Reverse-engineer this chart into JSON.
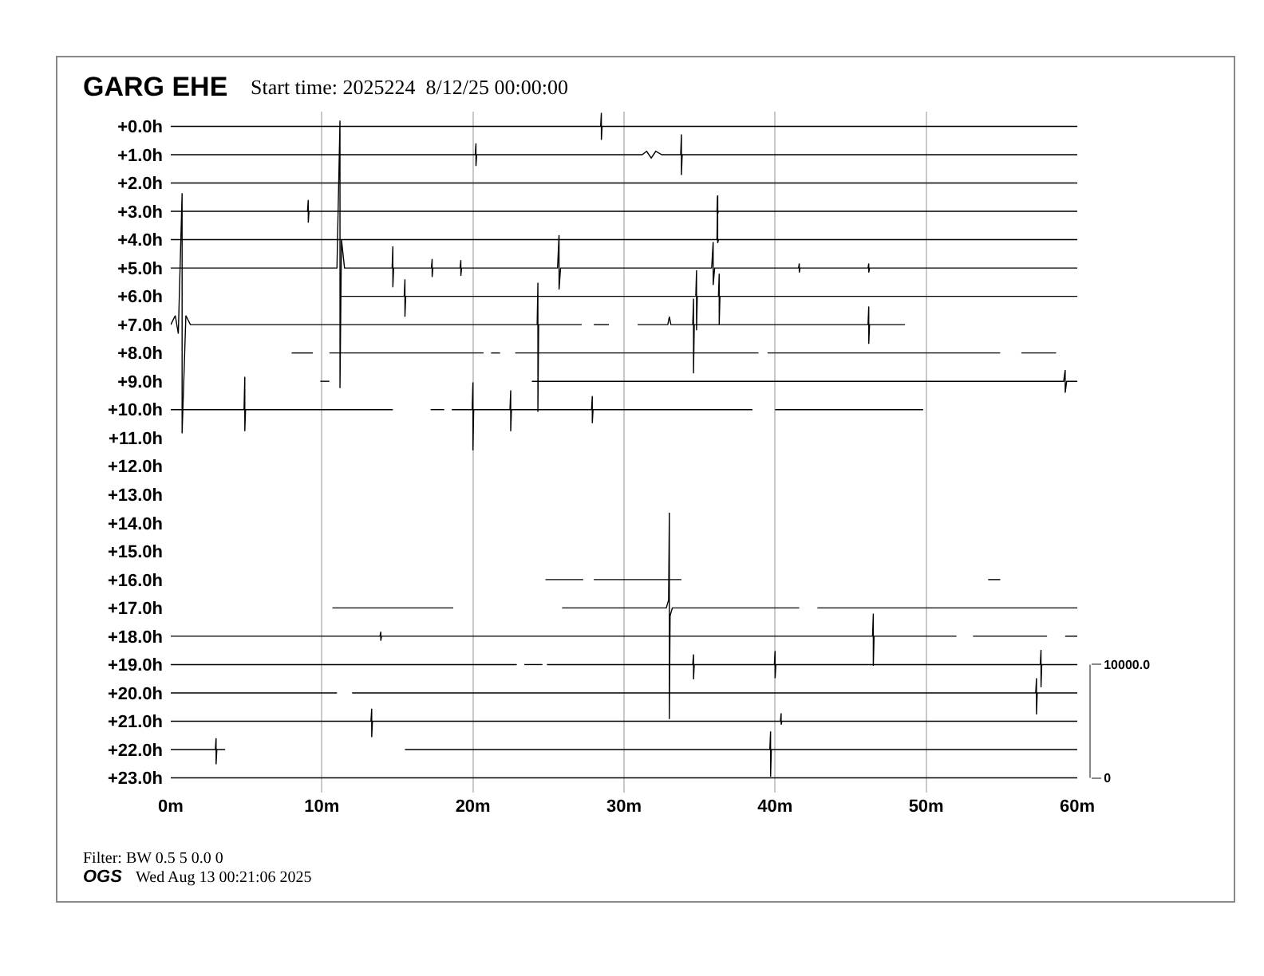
{
  "chart_data": {
    "type": "line",
    "title": "GARG EHE",
    "subtitle": "Start time: 2025224  8/12/25 00:00:00",
    "annotations": [
      "Filter: BW 0.5 5 0.0 0",
      "OGS",
      "Wed Aug 13 00:21:06 2025"
    ],
    "xlim": [
      0,
      60
    ],
    "xticks": [
      {
        "value": 0,
        "label": "0m"
      },
      {
        "value": 10,
        "label": "10m"
      },
      {
        "value": 20,
        "label": "20m"
      },
      {
        "value": 30,
        "label": "30m"
      },
      {
        "value": 40,
        "label": "40m"
      },
      {
        "value": 50,
        "label": "50m"
      },
      {
        "value": 60,
        "label": "60m"
      }
    ],
    "ylim": [
      23.52,
      -0.52
    ],
    "yticks": [
      {
        "value": 0,
        "label": "+0.0h"
      },
      {
        "value": 1,
        "label": "+1.0h"
      },
      {
        "value": 2,
        "label": "+2.0h"
      },
      {
        "value": 3,
        "label": "+3.0h"
      },
      {
        "value": 4,
        "label": "+4.0h"
      },
      {
        "value": 5,
        "label": "+5.0h"
      },
      {
        "value": 6,
        "label": "+6.0h"
      },
      {
        "value": 7,
        "label": "+7.0h"
      },
      {
        "value": 8,
        "label": "+8.0h"
      },
      {
        "value": 9,
        "label": "+9.0h"
      },
      {
        "value": 10,
        "label": "+10.0h"
      },
      {
        "value": 11,
        "label": "+11.0h"
      },
      {
        "value": 12,
        "label": "+12.0h"
      },
      {
        "value": 13,
        "label": "+13.0h"
      },
      {
        "value": 14,
        "label": "+14.0h"
      },
      {
        "value": 15,
        "label": "+15.0h"
      },
      {
        "value": 16,
        "label": "+16.0h"
      },
      {
        "value": 17,
        "label": "+17.0h"
      },
      {
        "value": 18,
        "label": "+18.0h"
      },
      {
        "value": 19,
        "label": "+19.0h"
      },
      {
        "value": 20,
        "label": "+20.0h"
      },
      {
        "value": 21,
        "label": "+21.0h"
      },
      {
        "value": 22,
        "label": "+22.0h"
      },
      {
        "value": 23,
        "label": "+23.0h"
      }
    ],
    "y2lim": [
      -1300,
      58800
    ],
    "y2ticks": [
      0,
      {
        "value": 10000,
        "label": "10000.0"
      }
    ],
    "grid": "x",
    "line_style": "solid",
    "series": [
      {
        "axis": "y2",
        "color": "#000000",
        "x": [
          0,
          28.45,
          28.5,
          28.5,
          28.55,
          60
        ],
        "values": [
          57500,
          57500,
          58700,
          56300,
          57500,
          57500
        ]
      },
      {
        "axis": "y2",
        "color": "#000000",
        "x": [
          0,
          20.15,
          20.2,
          20.2,
          20.25,
          31.2,
          31.5,
          31.8,
          32.1,
          32.5,
          33.75,
          33.8,
          33.8,
          33.85,
          60
        ],
        "values": [
          55000,
          55000,
          56000,
          54000,
          55000,
          55000,
          55300,
          54700,
          55300,
          55000,
          55000,
          56800,
          53200,
          55000,
          55000
        ]
      },
      {
        "axis": "y2",
        "color": "#000000",
        "x": [
          0,
          60
        ],
        "values": [
          52500,
          52500
        ]
      },
      {
        "axis": "y2",
        "color": "#000000",
        "x": [
          0,
          9.05,
          9.1,
          9.1,
          9.15,
          36.15,
          36.2,
          36.2,
          36.25,
          60
        ],
        "values": [
          50000,
          50000,
          51000,
          49000,
          50000,
          50000,
          51400,
          49800,
          50000,
          50000
        ]
      },
      {
        "axis": "y2",
        "color": "#000000",
        "x": [
          0,
          36.15,
          36.2,
          36.2,
          36.25,
          60
        ],
        "values": [
          47500,
          47500,
          51400,
          47200,
          47500,
          47500
        ]
      },
      {
        "axis": "y2",
        "color": "#000000",
        "x": [
          0,
          11,
          11.2,
          11.2,
          11.3,
          11.5,
          14.65,
          14.7,
          14.7,
          14.75,
          17.25,
          17.3,
          17.3,
          17.35,
          19.15,
          19.2,
          19.2,
          19.25,
          25.6,
          25.7,
          25.7,
          25.8,
          35.8,
          35.9,
          35.9,
          36.0,
          41.55,
          41.6,
          41.6,
          41.65,
          46.15,
          46.2,
          46.2,
          46.25,
          60
        ],
        "values": [
          45000,
          45000,
          58000,
          34400,
          47500,
          45000,
          45000,
          46900,
          43300,
          45000,
          45000,
          45800,
          44200,
          45000,
          45000,
          45700,
          44300,
          45000,
          45000,
          47900,
          43100,
          45000,
          45000,
          47300,
          43500,
          45000,
          45000,
          45400,
          44600,
          45000,
          45000,
          45400,
          44600,
          45000,
          45000
        ]
      },
      {
        "axis": "y2",
        "color": "#000000",
        "x": [
          11.2,
          15.45,
          15.5,
          15.5,
          15.55,
          34.75,
          34.8,
          34.8,
          34.85,
          36.25,
          36.3,
          36.3,
          36.35,
          60
        ],
        "values": [
          42500,
          42500,
          44000,
          40700,
          42500,
          42500,
          44800,
          39500,
          42500,
          42500,
          44500,
          40000,
          42500,
          42500
        ]
      },
      {
        "axis": "y2",
        "color": "#000000",
        "x": [
          0,
          0.3,
          0.5,
          0.75,
          0.75,
          1.0,
          1.3,
          24.25,
          24.3,
          24.3,
          24.35,
          27.2,
          27.6,
          28.0,
          29.0,
          29.9,
          30.9,
          32.9,
          33,
          33.1,
          34.55,
          34.6,
          34.6,
          34.65,
          46.15,
          46.2,
          46.2,
          46.25,
          48.6
        ],
        "values": [
          40000,
          40800,
          39200,
          51600,
          30400,
          40800,
          40000,
          40000,
          43700,
          32300,
          40000,
          40000,
          null,
          40000,
          40000,
          null,
          40000,
          40000,
          40700,
          40000,
          40000,
          42300,
          35700,
          40000,
          40000,
          41600,
          38300,
          40000,
          40000
        ]
      },
      {
        "axis": "y2",
        "color": "#000000",
        "x": [
          8.0,
          9.4,
          9.9,
          10.5,
          20.7,
          20.9,
          21.2,
          21.8,
          22.3,
          22.8,
          38.9,
          39.2,
          39.5,
          54.9,
          55.6,
          56.3,
          58.6
        ],
        "values": [
          37500,
          37500,
          null,
          37500,
          37500,
          null,
          37500,
          37500,
          null,
          37500,
          37500,
          null,
          37500,
          37500,
          null,
          37500,
          37500
        ]
      },
      {
        "axis": "y2",
        "color": "#000000",
        "x": [
          9.9,
          10.5,
          17,
          23.9,
          59.1,
          59.2,
          59.2,
          59.3,
          60
        ],
        "values": [
          35000,
          35000,
          null,
          35000,
          35000,
          36000,
          34000,
          35000,
          35000
        ]
      },
      {
        "axis": "y2",
        "color": "#000000",
        "x": [
          0,
          4.85,
          4.9,
          4.9,
          4.95,
          14.7,
          16,
          17.2,
          18.1,
          18.3,
          18.6,
          19.95,
          20,
          20,
          20.05,
          22.45,
          22.5,
          22.5,
          22.55,
          27.85,
          27.9,
          27.9,
          27.95,
          38.5,
          39.2,
          40.0,
          49.8
        ],
        "values": [
          32500,
          32500,
          35400,
          30600,
          32500,
          32500,
          null,
          32500,
          32500,
          null,
          32500,
          32500,
          34900,
          28900,
          32500,
          32500,
          34200,
          30600,
          32500,
          32500,
          33700,
          31300,
          32500,
          32500,
          null,
          32500,
          32500
        ]
      },
      {
        "axis": "y2",
        "color": "#000000",
        "x": [
          24.8,
          27.3,
          27.6,
          28.0,
          33.8,
          44,
          54.1,
          54.9
        ],
        "values": [
          17500,
          17500,
          null,
          17500,
          17500,
          null,
          17500,
          17500
        ]
      },
      {
        "axis": "y2",
        "color": "#000000",
        "x": [
          10.7,
          18.7,
          22,
          25.9,
          32.8,
          32.95,
          33,
          33,
          33.05,
          33.2,
          41.6,
          42.2,
          42.8,
          60
        ],
        "values": [
          15000,
          15000,
          null,
          15000,
          15000,
          15700,
          23400,
          5200,
          14300,
          15000,
          15000,
          null,
          15000,
          15000
        ]
      },
      {
        "axis": "y2",
        "color": "#000000",
        "x": [
          0,
          13.85,
          13.9,
          13.9,
          13.95,
          46.45,
          46.5,
          46.5,
          46.55,
          52.0,
          52.5,
          53.1,
          58.0,
          58.6,
          59.2,
          60
        ],
        "values": [
          12500,
          12500,
          12900,
          12100,
          12500,
          12500,
          14500,
          9900,
          12500,
          12500,
          null,
          12500,
          12500,
          null,
          12500,
          12500
        ]
      },
      {
        "axis": "y2",
        "color": "#000000",
        "x": [
          0,
          22.9,
          23.1,
          23.4,
          24.6,
          24.7,
          24.9,
          34.55,
          34.6,
          34.6,
          34.65,
          39.95,
          40,
          40,
          40.05,
          57.55,
          57.6,
          57.6,
          57.65,
          60
        ],
        "values": [
          10000,
          10000,
          null,
          10000,
          10000,
          null,
          10000,
          10000,
          10900,
          8700,
          10000,
          10000,
          11200,
          8800,
          10000,
          10000,
          11300,
          8000,
          10000,
          10000
        ]
      },
      {
        "axis": "y2",
        "color": "#000000",
        "x": [
          0,
          11.0,
          11.5,
          12.0,
          57.25,
          57.3,
          57.3,
          57.35,
          60
        ],
        "values": [
          7500,
          7500,
          null,
          7500,
          7500,
          8800,
          5600,
          7500,
          7500
        ]
      },
      {
        "axis": "y2",
        "color": "#000000",
        "x": [
          0,
          13.25,
          13.3,
          13.3,
          13.35,
          40.35,
          40.4,
          40.4,
          40.45,
          60
        ],
        "values": [
          5000,
          5000,
          6100,
          3600,
          5000,
          5000,
          5700,
          4700,
          5000,
          5000
        ]
      },
      {
        "axis": "y2",
        "color": "#000000",
        "x": [
          0,
          2.95,
          3,
          3,
          3.05,
          3.6,
          9,
          15.5,
          39.65,
          39.7,
          39.7,
          39.75,
          60
        ],
        "values": [
          2500,
          2500,
          3500,
          1200,
          2500,
          2500,
          null,
          2500,
          2500,
          4100,
          100,
          2500,
          2500
        ]
      },
      {
        "axis": "y2",
        "color": "#000000",
        "x": [
          0,
          60
        ],
        "values": [
          0,
          0
        ]
      }
    ]
  }
}
